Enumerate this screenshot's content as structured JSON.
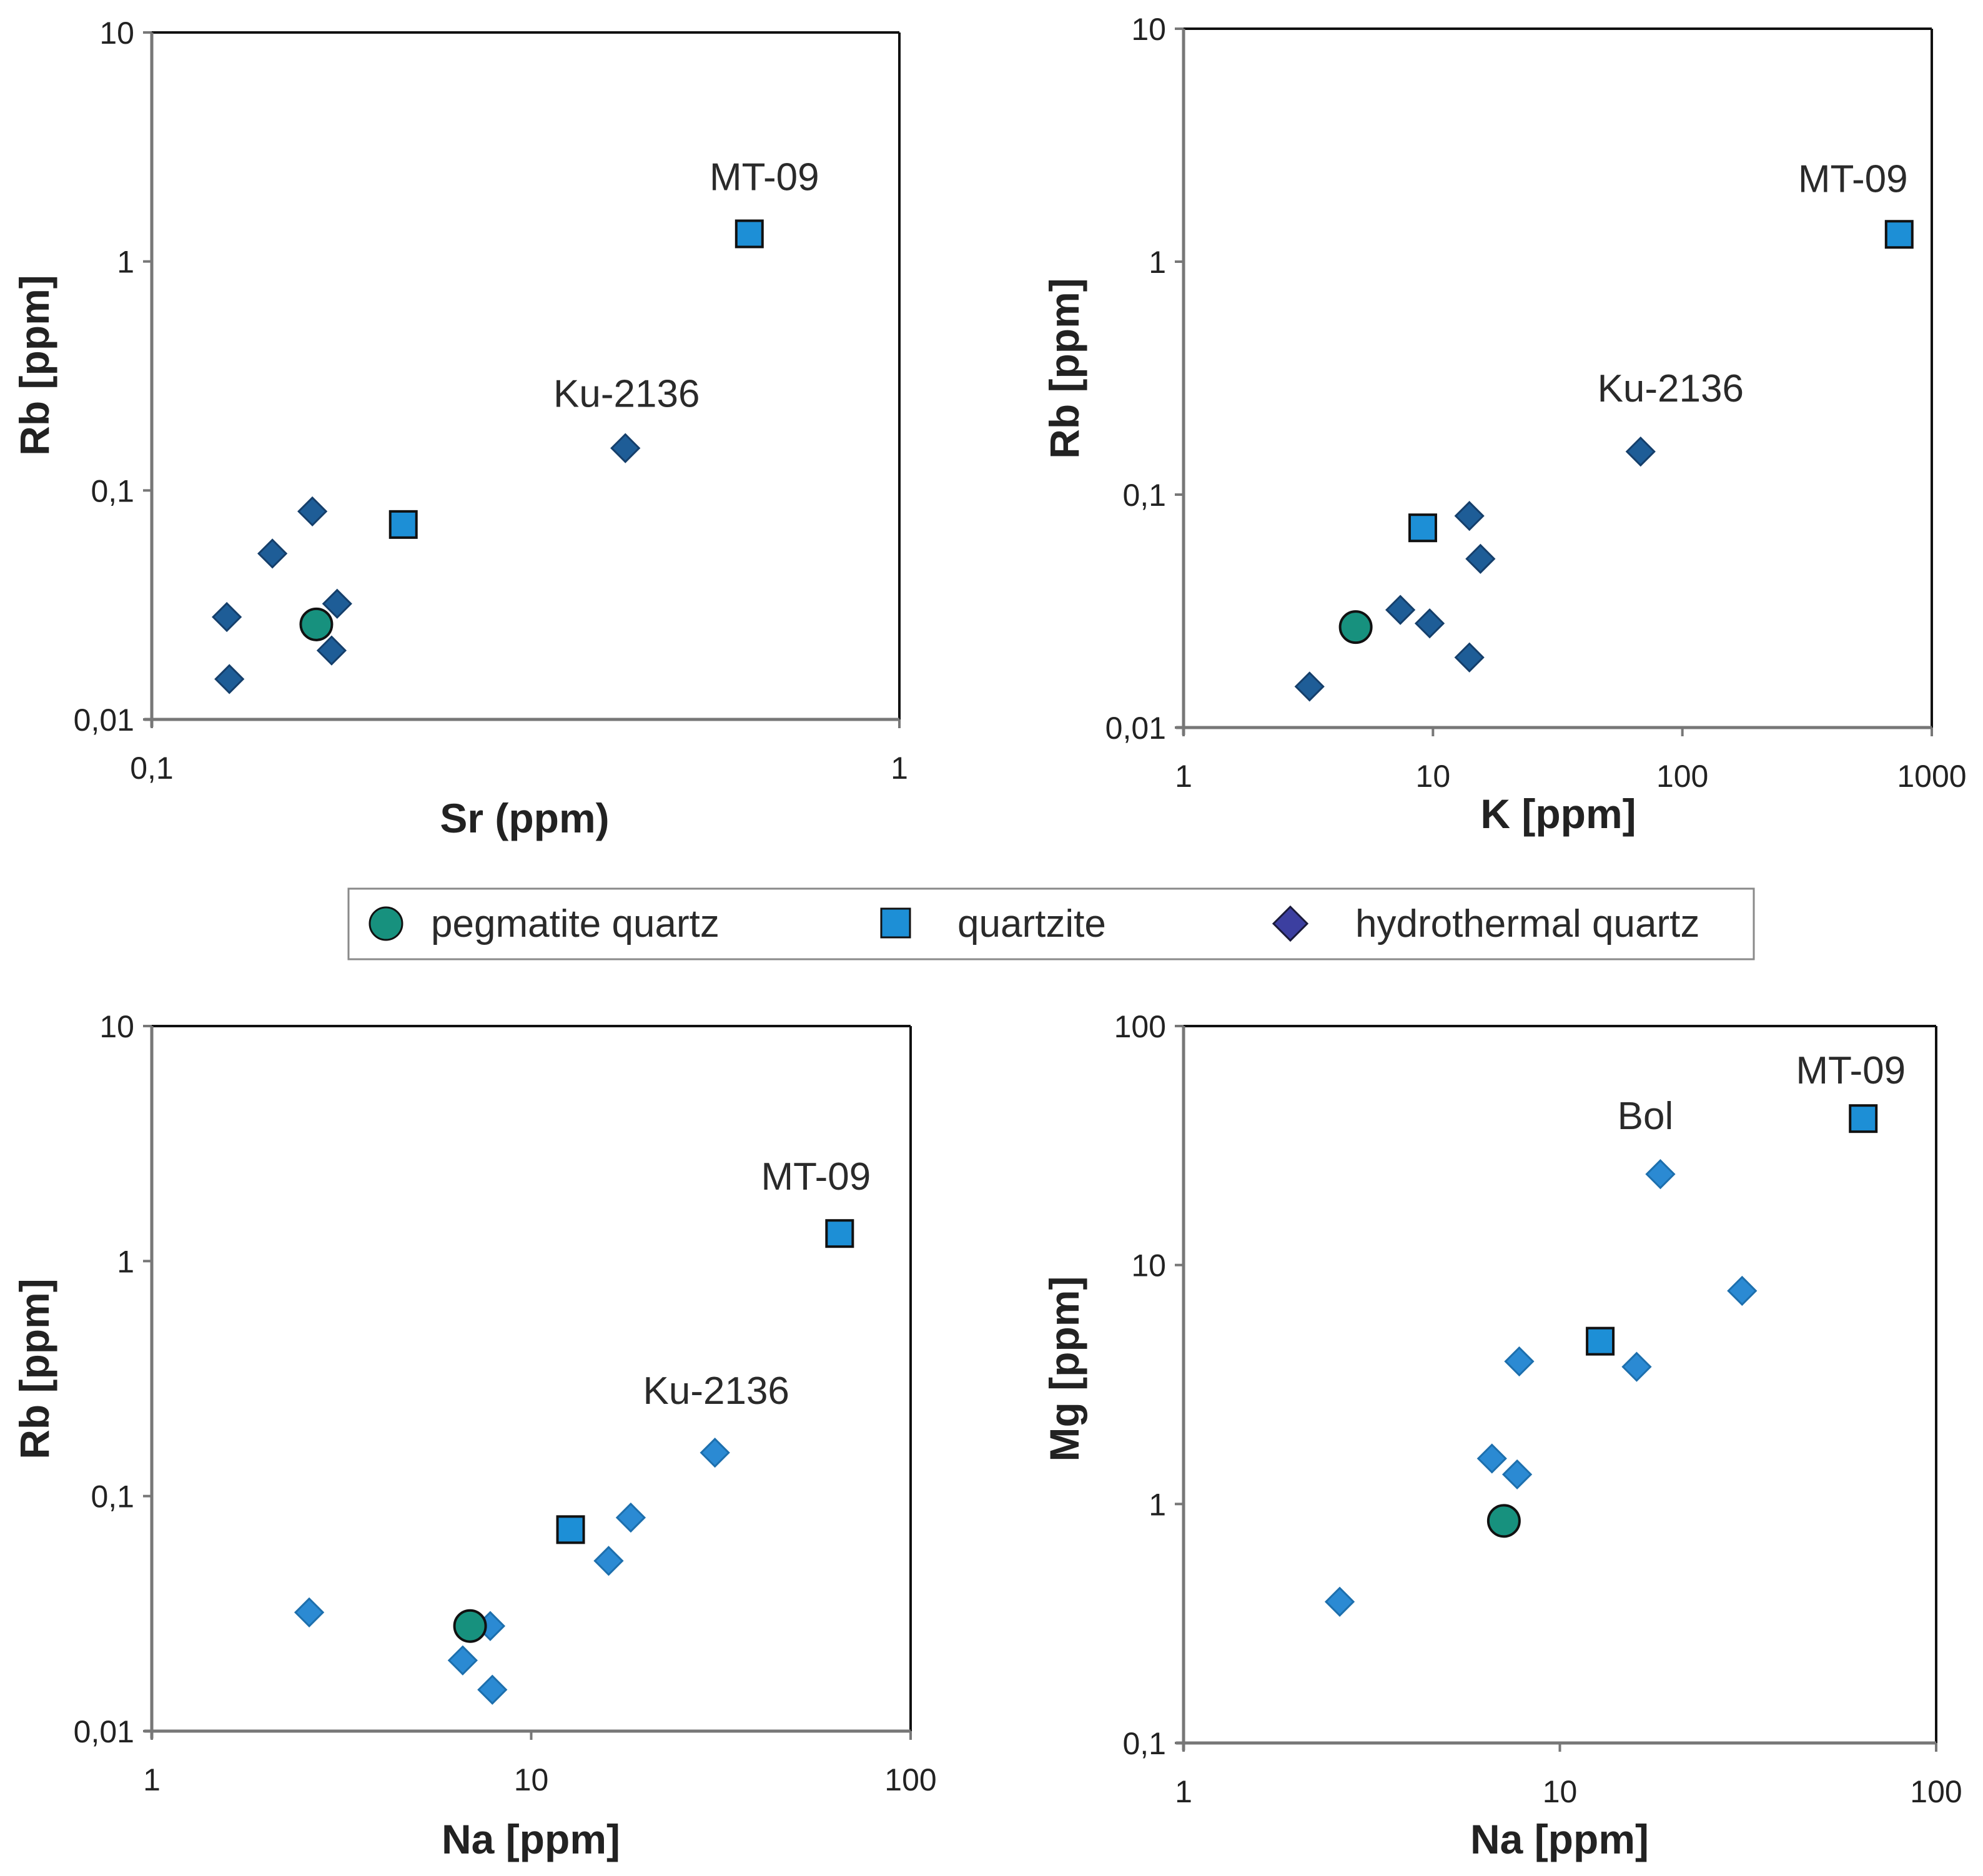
{
  "colors": {
    "pegmatite": "#17917e",
    "quartzite": "#1d8fd6",
    "hydro_dark": "#1e5d97",
    "hydro_light": "#2b8ad3",
    "axis": "#777777",
    "frame": "#111111"
  },
  "legend": {
    "items": [
      {
        "label": "pegmatite quartz",
        "marker": "circle"
      },
      {
        "label": "quartzite",
        "marker": "square"
      },
      {
        "label": "hydrothermal quartz",
        "marker": "diamond"
      }
    ]
  },
  "chart_data": [
    {
      "type": "scatter",
      "xscale": "log",
      "yscale": "log",
      "xlim": [
        0.1,
        1
      ],
      "ylim": [
        0.01,
        10
      ],
      "xticks": [
        "0,1",
        "1"
      ],
      "yticks": [
        "0,01",
        "0,1",
        "1",
        "10"
      ],
      "xlabel": "Sr (ppm)",
      "ylabel": "Rb [ppm]",
      "series": [
        {
          "name": "pegmatite quartz",
          "marker": "circle",
          "points": [
            [
              0.166,
              0.026
            ]
          ]
        },
        {
          "name": "quartzite",
          "marker": "square",
          "points": [
            [
              0.217,
              0.071
            ],
            [
              0.63,
              1.32
            ]
          ]
        },
        {
          "name": "hydrothermal quartz",
          "marker": "diamond",
          "style": "dark",
          "points": [
            [
              0.126,
              0.028
            ],
            [
              0.127,
              0.015
            ],
            [
              0.145,
              0.053
            ],
            [
              0.164,
              0.081
            ],
            [
              0.174,
              0.02
            ],
            [
              0.177,
              0.032
            ],
            [
              0.43,
              0.153
            ]
          ]
        }
      ],
      "annotations": [
        {
          "text": "MT-09",
          "x": 0.63,
          "y": 1.32
        },
        {
          "text": "Ku-2136",
          "x": 0.43,
          "y": 0.153
        }
      ]
    },
    {
      "type": "scatter",
      "xscale": "log",
      "yscale": "log",
      "xlim": [
        1,
        1000
      ],
      "ylim": [
        0.01,
        10
      ],
      "xticks": [
        "1",
        "10",
        "100",
        "1000"
      ],
      "yticks": [
        "0,01",
        "0,1",
        "1",
        "10"
      ],
      "xlabel": "K [ppm]",
      "ylabel": "Rb [ppm]",
      "series": [
        {
          "name": "pegmatite quartz",
          "marker": "circle",
          "points": [
            [
              4.9,
              0.027
            ]
          ]
        },
        {
          "name": "quartzite",
          "marker": "square",
          "points": [
            [
              9.1,
              0.072
            ],
            [
              740,
              1.31
            ]
          ]
        },
        {
          "name": "hydrothermal quartz",
          "marker": "diamond",
          "style": "dark",
          "points": [
            [
              3.2,
              0.015
            ],
            [
              7.4,
              0.032
            ],
            [
              9.7,
              0.028
            ],
            [
              14,
              0.081
            ],
            [
              14,
              0.02
            ],
            [
              15.5,
              0.053
            ],
            [
              68,
              0.153
            ]
          ]
        }
      ],
      "annotations": [
        {
          "text": "MT-09",
          "x": 740,
          "y": 1.31
        },
        {
          "text": "Ku-2136",
          "x": 68,
          "y": 0.153
        }
      ]
    },
    {
      "type": "scatter",
      "xscale": "log",
      "yscale": "log",
      "xlim": [
        1,
        100
      ],
      "ylim": [
        0.01,
        10
      ],
      "xticks": [
        "1",
        "10",
        "100"
      ],
      "yticks": [
        "0,01",
        "0,1",
        "1",
        "10"
      ],
      "xlabel": "Na [ppm]",
      "ylabel": "Rb [ppm]",
      "series": [
        {
          "name": "pegmatite quartz",
          "marker": "circle",
          "points": [
            [
              6.9,
              0.028
            ]
          ]
        },
        {
          "name": "quartzite",
          "marker": "square",
          "points": [
            [
              12.7,
              0.072
            ],
            [
              65,
              1.31
            ]
          ]
        },
        {
          "name": "hydrothermal quartz",
          "marker": "diamond",
          "style": "light",
          "points": [
            [
              2.6,
              0.032
            ],
            [
              6.6,
              0.02
            ],
            [
              7.8,
              0.028
            ],
            [
              7.9,
              0.015
            ],
            [
              16,
              0.053
            ],
            [
              18.3,
              0.081
            ],
            [
              30.5,
              0.153
            ]
          ]
        }
      ],
      "annotations": [
        {
          "text": "MT-09",
          "x": 65,
          "y": 1.31
        },
        {
          "text": "Ku-2136",
          "x": 30.5,
          "y": 0.153
        }
      ]
    },
    {
      "type": "scatter",
      "xscale": "log",
      "yscale": "log",
      "xlim": [
        1,
        100
      ],
      "ylim": [
        0.1,
        100
      ],
      "xticks": [
        "1",
        "10",
        "100"
      ],
      "yticks": [
        "0,1",
        "1",
        "10",
        "100"
      ],
      "xlabel": "Na [ppm]",
      "ylabel": "Mg [ppm]",
      "series": [
        {
          "name": "pegmatite quartz",
          "marker": "circle",
          "points": [
            [
              7.1,
              0.85
            ]
          ]
        },
        {
          "name": "quartzite",
          "marker": "square",
          "points": [
            [
              12.8,
              4.8
            ],
            [
              64,
              41
            ]
          ]
        },
        {
          "name": "hydrothermal quartz",
          "marker": "diamond",
          "style": "light",
          "points": [
            [
              2.6,
              0.39
            ],
            [
              6.6,
              1.55
            ],
            [
              7.7,
              1.33
            ],
            [
              7.8,
              3.95
            ],
            [
              16,
              3.75
            ],
            [
              18.5,
              24
            ],
            [
              30.5,
              7.8
            ]
          ]
        }
      ],
      "annotations": [
        {
          "text": "MT-09",
          "x": 64,
          "y": 41
        },
        {
          "text": "Bol",
          "x": 18.5,
          "y": 24
        }
      ]
    }
  ]
}
